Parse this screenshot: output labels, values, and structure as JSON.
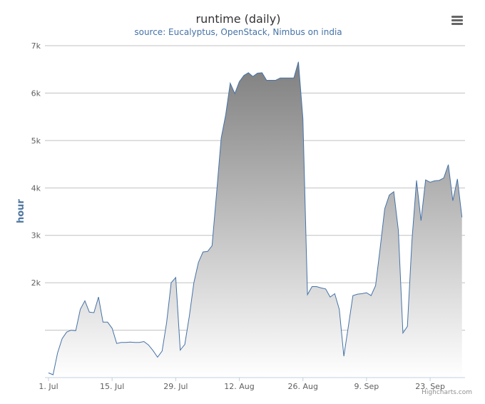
{
  "chart_data": {
    "type": "area",
    "title": "runtime (daily)",
    "subtitle": "source: Eucalyptus, OpenStack, Nimbus on india",
    "xlabel": "",
    "ylabel": "hour",
    "x_start": "2012-07-01",
    "x_interval_days": 1,
    "xticks": [
      "1. Jul",
      "15. Jul",
      "29. Jul",
      "12. Aug",
      "26. Aug",
      "9. Sep",
      "23. Sep"
    ],
    "ytick_labels": [
      "2k",
      "3k",
      "4k",
      "5k",
      "6k",
      "7k"
    ],
    "ylim": [
      0,
      7000
    ],
    "grid": true,
    "legend": "none",
    "values": [
      100,
      60,
      520,
      820,
      960,
      1000,
      990,
      1440,
      1620,
      1380,
      1370,
      1700,
      1170,
      1170,
      1040,
      720,
      740,
      740,
      750,
      740,
      740,
      760,
      690,
      570,
      430,
      560,
      1160,
      2000,
      2110,
      580,
      700,
      1300,
      2000,
      2430,
      2650,
      2660,
      2780,
      3900,
      5050,
      5540,
      6210,
      5990,
      6240,
      6370,
      6430,
      6350,
      6420,
      6430,
      6270,
      6270,
      6270,
      6320,
      6320,
      6320,
      6320,
      6660,
      5460,
      1750,
      1920,
      1920,
      1890,
      1870,
      1700,
      1770,
      1440,
      450,
      1080,
      1730,
      1760,
      1770,
      1790,
      1730,
      1940,
      2730,
      3560,
      3850,
      3920,
      3110,
      940,
      1080,
      2900,
      4160,
      3310,
      4170,
      4120,
      4150,
      4160,
      4210,
      4490,
      3730,
      4190,
      3380
    ],
    "colors": {
      "line": "#4572A7",
      "fill_top": "#7f7f7f",
      "fill_bottom": "#ffffff",
      "grid": "#c0c0c0"
    }
  },
  "credits": "Highcharts.com",
  "icons": {
    "menu": "menu-icon"
  }
}
